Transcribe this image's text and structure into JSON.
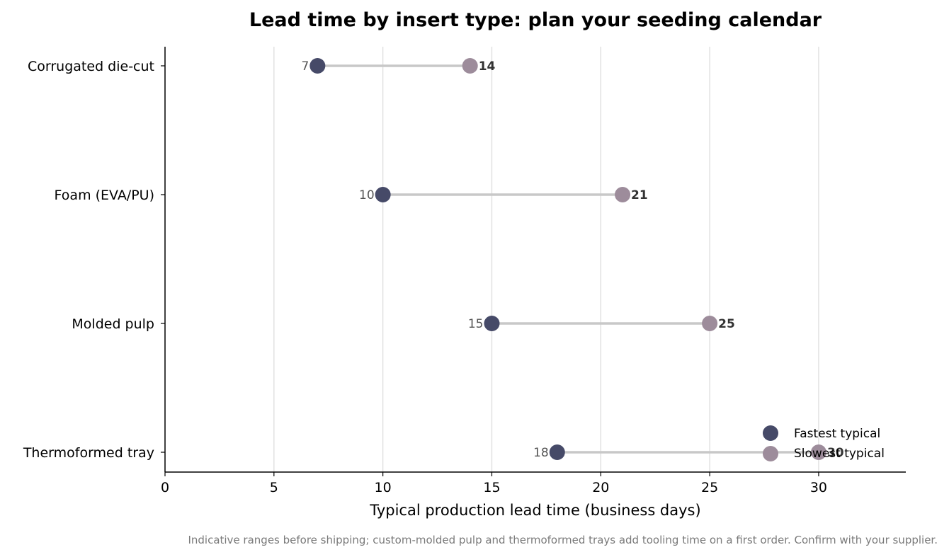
{
  "chart_data": {
    "type": "dumbbell",
    "title": "Lead time by insert type: plan your seeding calendar",
    "xlabel": "Typical production lead time (business days)",
    "ylabel": "",
    "xlim": [
      0,
      34
    ],
    "xticks": [
      0,
      5,
      10,
      15,
      20,
      25,
      30
    ],
    "grid": "vertical",
    "legend": "bottom-right",
    "categories": [
      "Corrugated die-cut",
      "Foam (EVA/PU)",
      "Molded pulp",
      "Thermoformed tray"
    ],
    "series": [
      {
        "name": "Fastest typical",
        "values": [
          7,
          10,
          15,
          18
        ],
        "color": "#464a68"
      },
      {
        "name": "Slowest typical",
        "values": [
          14,
          21,
          25,
          30
        ],
        "color": "#9d8c9b"
      }
    ],
    "connector_color": "#c8c8c8",
    "footnote": "Indicative ranges before shipping; custom-molded pulp and thermoformed trays add tooling time on a first order. Confirm with your supplier."
  }
}
